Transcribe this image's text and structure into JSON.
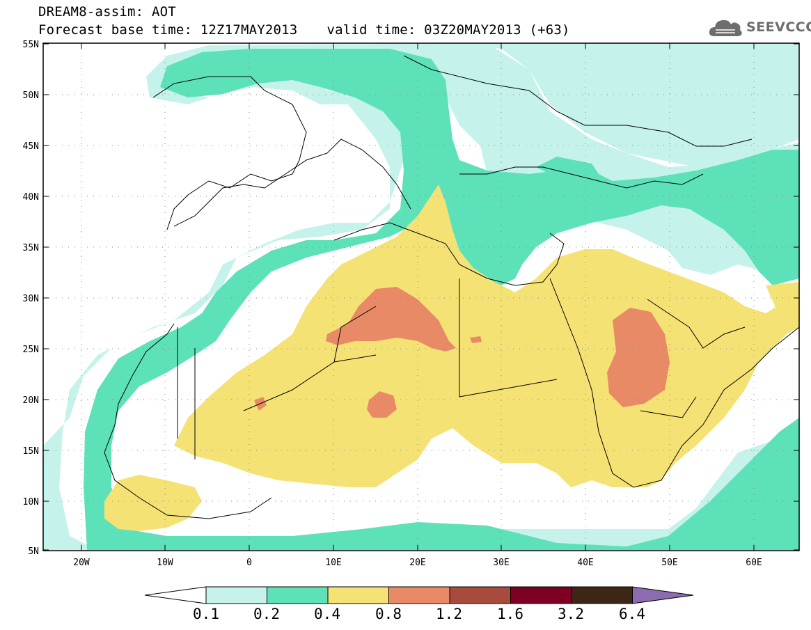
{
  "header": {
    "title_line1": "DREAM8-assim: AOT",
    "forecast_base": "Forecast base time: 12Z17MAY2013",
    "valid_time": "valid time: 03Z20MAY2013 (+63)",
    "logo_text": "SEEVCCC",
    "logo_icon": "cloud-icon"
  },
  "map": {
    "projection": "lat-lon",
    "lon_range": [
      -25,
      65
    ],
    "lat_range": [
      5,
      55
    ],
    "lat_ticks": [
      "55N",
      "50N",
      "45N",
      "40N",
      "35N",
      "30N",
      "25N",
      "20N",
      "15N",
      "10N",
      "5N"
    ],
    "lon_ticks": [
      "20W",
      "10W",
      "0",
      "10E",
      "20E",
      "30E",
      "40E",
      "50E",
      "60E"
    ],
    "grid": "dotted"
  },
  "legend": {
    "levels": [
      "0.1",
      "0.2",
      "0.4",
      "0.8",
      "1.2",
      "1.6",
      "3.2",
      "6.4"
    ],
    "colors": [
      "#c6f2ec",
      "#5de1b9",
      "#f5e275",
      "#e98a66",
      "#a84b3c",
      "#7d0022",
      "#3d2615",
      "#8c6bb1"
    ]
  }
}
